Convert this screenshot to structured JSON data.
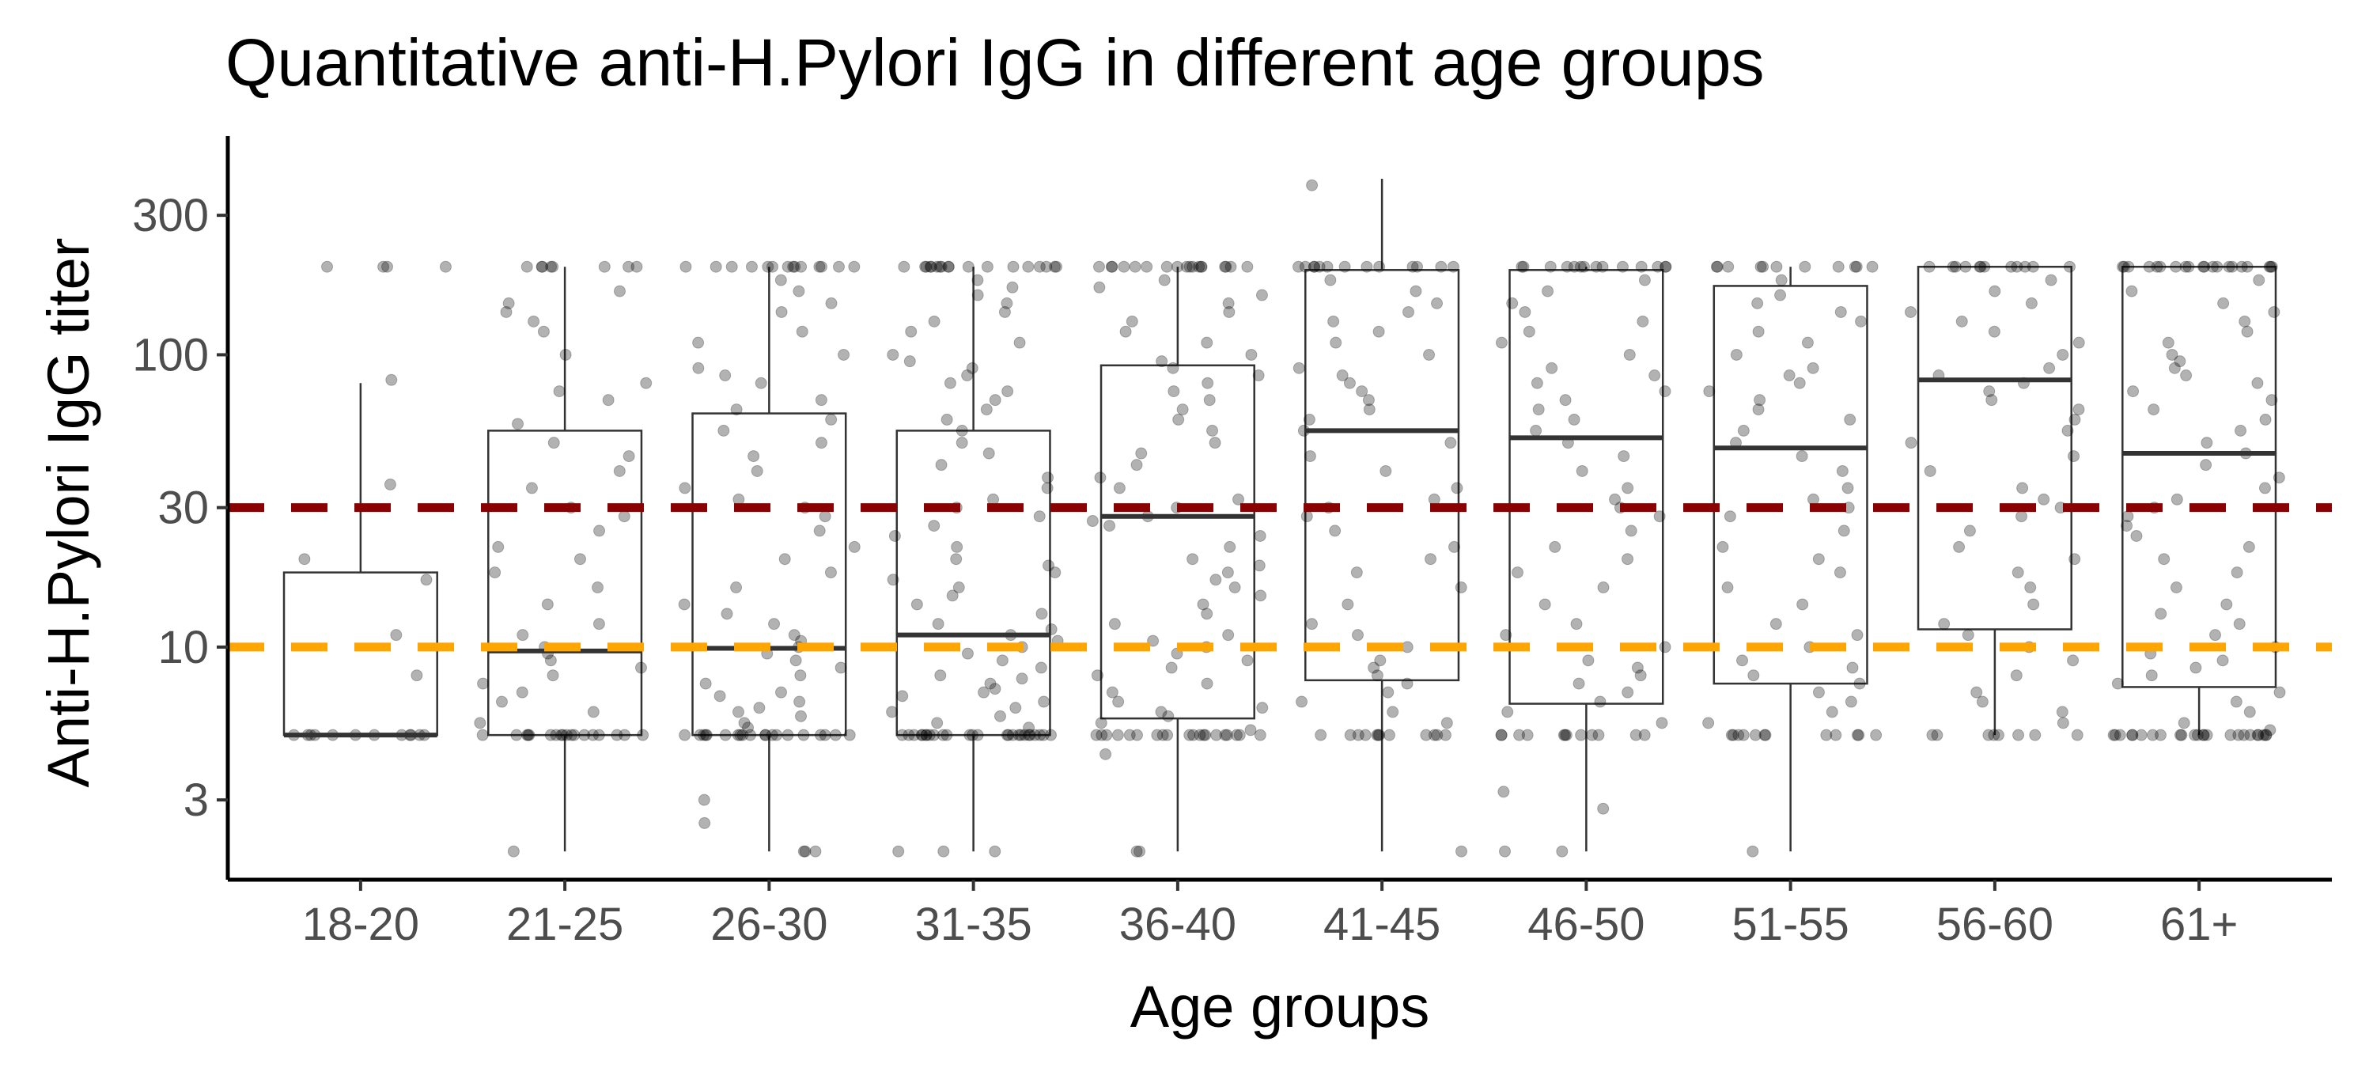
{
  "chart_data": {
    "type": "box",
    "title": "Quantitative anti-H.Pylori IgG in different age groups",
    "xlabel": "Age groups",
    "ylabel": "Anti-H.Pylori IgG titer",
    "y_scale": "log10",
    "ylim": [
      1.6,
      560
    ],
    "yticks": [
      3,
      10,
      30,
      100,
      300
    ],
    "grid": false,
    "reference_lines": [
      {
        "value": 30,
        "color": "#8B0000",
        "style": "dashed"
      },
      {
        "value": 10,
        "color": "#FFA500",
        "style": "dashed"
      }
    ],
    "categories": [
      "18-20",
      "21-25",
      "26-30",
      "31-35",
      "36-40",
      "41-45",
      "46-50",
      "51-55",
      "56-60",
      "61+"
    ],
    "boxes": [
      {
        "min": 5,
        "q1": 5,
        "median": 5,
        "q3": 18,
        "max": 80
      },
      {
        "min": 2,
        "q1": 5,
        "median": 9.7,
        "q3": 55,
        "max": 200
      },
      {
        "min": 2,
        "q1": 5,
        "median": 9.9,
        "q3": 63,
        "max": 200
      },
      {
        "min": 2,
        "q1": 5,
        "median": 11,
        "q3": 55,
        "max": 200
      },
      {
        "min": 2,
        "q1": 5.7,
        "median": 28,
        "q3": 92,
        "max": 200
      },
      {
        "min": 2,
        "q1": 7.7,
        "median": 55,
        "q3": 195,
        "max": 400
      },
      {
        "min": 2,
        "q1": 6.4,
        "median": 52,
        "q3": 195,
        "max": 200
      },
      {
        "min": 2,
        "q1": 7.5,
        "median": 48,
        "q3": 172,
        "max": 200
      },
      {
        "min": 5,
        "q1": 11.5,
        "median": 82,
        "q3": 200,
        "max": 200
      },
      {
        "min": 5,
        "q1": 7.3,
        "median": 46,
        "q3": 200,
        "max": 200
      }
    ],
    "points": [
      {
        "group": "18-20",
        "values": [
          200,
          200,
          200,
          200,
          82,
          36,
          20,
          17,
          11,
          8,
          5,
          5,
          5,
          5,
          5,
          5,
          5,
          5,
          5,
          5,
          5,
          5
        ]
      },
      {
        "group": "21-25",
        "values": [
          200,
          200,
          200,
          200,
          200,
          200,
          200,
          200,
          165,
          150,
          140,
          130,
          120,
          100,
          80,
          75,
          70,
          58,
          50,
          45,
          40,
          35,
          30,
          28,
          25,
          22,
          20,
          18,
          16,
          14,
          12,
          11,
          10,
          9.5,
          9,
          8.5,
          8,
          7.5,
          7,
          6.5,
          6,
          5.5,
          5,
          5,
          5,
          5,
          5,
          5,
          5,
          5,
          5,
          5,
          5,
          5,
          5,
          5,
          5,
          5,
          5,
          5,
          2
        ]
      },
      {
        "group": "26-30",
        "values": [
          200,
          200,
          200,
          200,
          200,
          200,
          200,
          200,
          200,
          200,
          200,
          200,
          200,
          200,
          180,
          165,
          150,
          140,
          120,
          110,
          100,
          90,
          85,
          80,
          70,
          65,
          60,
          55,
          50,
          45,
          40,
          35,
          32,
          30,
          28,
          25,
          22,
          20,
          18,
          16,
          14,
          13,
          12,
          11,
          10.5,
          10,
          9.5,
          9,
          8.5,
          8,
          7.5,
          7,
          6.8,
          6.5,
          6.2,
          6,
          5.8,
          5.5,
          5.3,
          5,
          5,
          5,
          5,
          5,
          5,
          5,
          5,
          5,
          5,
          5,
          5,
          5,
          5,
          5,
          5,
          5,
          5,
          5,
          5,
          3,
          2.5,
          2,
          2,
          2
        ]
      },
      {
        "group": "31-35",
        "values": [
          200,
          200,
          200,
          200,
          200,
          200,
          200,
          200,
          200,
          200,
          200,
          200,
          200,
          200,
          200,
          200,
          200,
          200,
          180,
          170,
          160,
          150,
          140,
          130,
          120,
          110,
          100,
          95,
          90,
          85,
          80,
          75,
          70,
          65,
          60,
          55,
          50,
          46,
          42,
          38,
          35,
          32,
          30,
          28,
          26,
          24,
          22,
          20,
          19,
          18,
          17,
          16,
          15,
          14,
          13,
          12,
          11.5,
          11,
          10.5,
          10,
          9.5,
          9,
          8.5,
          8,
          7.8,
          7.5,
          7.2,
          7,
          6.8,
          6.5,
          6.2,
          6,
          5.8,
          5.5,
          5.3,
          5,
          5,
          5,
          5,
          5,
          5,
          5,
          5,
          5,
          5,
          5,
          5,
          5,
          5,
          5,
          5,
          5,
          5,
          5,
          5,
          5,
          5,
          5,
          5,
          5,
          5,
          2,
          2,
          2
        ]
      },
      {
        "group": "36-40",
        "values": [
          200,
          200,
          200,
          200,
          200,
          200,
          200,
          200,
          200,
          200,
          200,
          200,
          200,
          200,
          200,
          200,
          200,
          200,
          180,
          170,
          160,
          150,
          140,
          130,
          120,
          110,
          100,
          95,
          90,
          85,
          80,
          75,
          70,
          65,
          60,
          55,
          50,
          46,
          42,
          38,
          35,
          32,
          30,
          28,
          27,
          26,
          24,
          22,
          20,
          19,
          18,
          17,
          16,
          15,
          14,
          13,
          12,
          11,
          10.5,
          10,
          9.5,
          9,
          8.5,
          8,
          7.5,
          7,
          6.5,
          6.2,
          6,
          5.8,
          5.5,
          5.2,
          5,
          5,
          5,
          5,
          5,
          5,
          5,
          5,
          5,
          5,
          5,
          5,
          5,
          5,
          5,
          5,
          5,
          5,
          5,
          5,
          4.3,
          2,
          2
        ]
      },
      {
        "group": "41-45",
        "values": [
          380,
          200,
          200,
          200,
          200,
          200,
          200,
          200,
          200,
          200,
          200,
          200,
          200,
          200,
          180,
          165,
          150,
          140,
          130,
          120,
          110,
          100,
          90,
          85,
          80,
          75,
          70,
          65,
          60,
          55,
          50,
          45,
          40,
          35,
          32,
          30,
          28,
          25,
          22,
          20,
          18,
          16,
          14,
          12,
          11,
          10,
          9,
          8.5,
          8,
          7.5,
          7,
          6.5,
          6,
          5.5,
          5,
          5,
          5,
          5,
          5,
          5,
          5,
          5,
          5,
          5,
          5,
          5,
          2
        ]
      },
      {
        "group": "46-50",
        "values": [
          200,
          200,
          200,
          200,
          200,
          200,
          200,
          200,
          200,
          200,
          200,
          200,
          200,
          200,
          180,
          165,
          150,
          140,
          130,
          120,
          110,
          100,
          90,
          85,
          80,
          75,
          70,
          65,
          60,
          55,
          50,
          45,
          40,
          35,
          32,
          30,
          28,
          25,
          22,
          20,
          18,
          16,
          14,
          12,
          11,
          10,
          9,
          8.5,
          8,
          7.5,
          7,
          6.5,
          6,
          5.5,
          5,
          5,
          5,
          5,
          5,
          5,
          5,
          5,
          5,
          5,
          5,
          5,
          3.2,
          2.8,
          2,
          2
        ]
      },
      {
        "group": "51-55",
        "values": [
          200,
          200,
          200,
          200,
          200,
          200,
          200,
          200,
          200,
          200,
          200,
          180,
          160,
          150,
          140,
          130,
          120,
          110,
          100,
          90,
          85,
          80,
          75,
          70,
          65,
          60,
          55,
          50,
          45,
          40,
          35,
          32,
          30,
          28,
          25,
          22,
          20,
          18,
          16,
          14,
          12,
          11,
          10,
          9,
          8.5,
          8,
          7.5,
          7,
          6.5,
          6,
          5.5,
          5,
          5,
          5,
          5,
          5,
          5,
          5,
          5,
          5,
          5,
          5,
          5,
          2
        ]
      },
      {
        "group": "56-60",
        "values": [
          200,
          200,
          200,
          200,
          200,
          200,
          200,
          200,
          200,
          200,
          200,
          200,
          180,
          165,
          150,
          140,
          130,
          120,
          110,
          100,
          90,
          85,
          80,
          75,
          70,
          65,
          60,
          55,
          50,
          45,
          40,
          35,
          32,
          30,
          28,
          25,
          22,
          20,
          18,
          16,
          14,
          12,
          11,
          10,
          9,
          8,
          7,
          6.5,
          6,
          5.5,
          5,
          5,
          5,
          5,
          5,
          5,
          5,
          5
        ]
      },
      {
        "group": "61+",
        "values": [
          200,
          200,
          200,
          200,
          200,
          200,
          200,
          200,
          200,
          200,
          200,
          200,
          200,
          200,
          200,
          200,
          200,
          200,
          200,
          200,
          180,
          165,
          150,
          140,
          130,
          120,
          110,
          100,
          95,
          90,
          85,
          80,
          75,
          70,
          65,
          60,
          55,
          50,
          46,
          42,
          38,
          35,
          32,
          30,
          28,
          26,
          24,
          22,
          20,
          18,
          16,
          14,
          13,
          12,
          11,
          10,
          9.5,
          9,
          8.5,
          8,
          7.5,
          7,
          6.5,
          6,
          5.5,
          5.2,
          5,
          5,
          5,
          5,
          5,
          5,
          5,
          5,
          5,
          5,
          5,
          5,
          5,
          5,
          5,
          5,
          5,
          5,
          5,
          5,
          5,
          5,
          5,
          5
        ]
      }
    ]
  }
}
